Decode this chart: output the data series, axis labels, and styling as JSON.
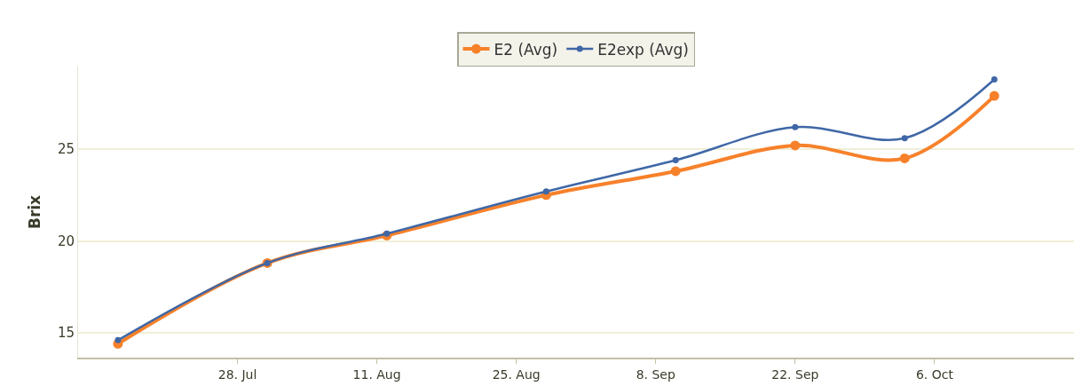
{
  "chart_data": {
    "type": "line",
    "ylabel": "Brix",
    "x": [
      "--07-16",
      "--07-31",
      "--08-12",
      "--08-28",
      "--09-10",
      "--09-22",
      "--10-03",
      "--10-12"
    ],
    "series": [
      {
        "name": "E2 (Avg)",
        "color": "#f7812a",
        "values": [
          14.4,
          18.8,
          20.3,
          22.5,
          23.8,
          25.2,
          24.5,
          27.9
        ]
      },
      {
        "name": "E2exp (Avg)",
        "color": "#3f67a6",
        "values": [
          14.6,
          18.8,
          20.4,
          22.7,
          24.4,
          26.2,
          25.6,
          28.8
        ]
      }
    ],
    "xlim": [
      "--07-12",
      "--10-20"
    ],
    "xticks": [
      {
        "value": "--07-28",
        "label": "28. Jul"
      },
      {
        "value": "--08-11",
        "label": "11. Aug"
      },
      {
        "value": "--08-25",
        "label": "25. Aug"
      },
      {
        "value": "--09-08",
        "label": "8. Sep"
      },
      {
        "value": "--09-22",
        "label": "22. Sep"
      },
      {
        "value": "--10-06",
        "label": "6. Oct"
      }
    ],
    "ylim": [
      13.65,
      29.5
    ],
    "yticks": [
      15,
      20,
      25
    ],
    "grid": "y",
    "legend": "top",
    "marker": "circle",
    "line_style": "solid"
  }
}
